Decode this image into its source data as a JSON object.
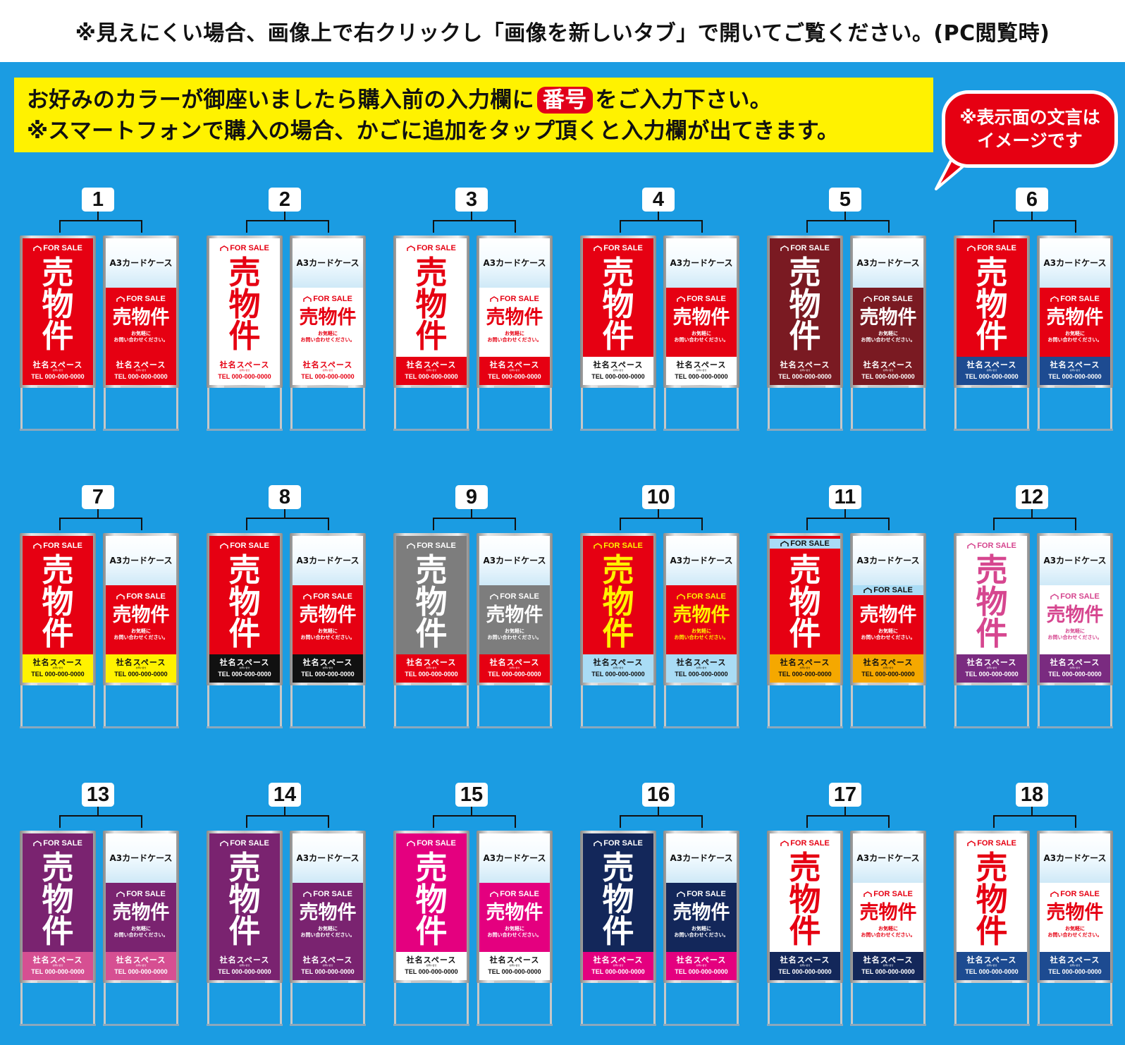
{
  "notice": {
    "text": "※見えにくい場合、画像上で右クリックし「画像を新しいタブ」で開いてご覧ください。(PC閲覧時)"
  },
  "instructions": {
    "line1_before": "お好みのカラーが御座いましたら購入前の入力欄に",
    "line1_highlight": "番号",
    "line1_after": "をご入力下さい。",
    "line2": "※スマートフォンで購入の場合、かごに追加をタップ頂くと入力欄が出てきます。"
  },
  "bubble": {
    "line1": "※表示面の文言は",
    "line2": "イメージです"
  },
  "sign_text": {
    "for_sale": "FOR SALE",
    "main_chars": [
      "売",
      "物",
      "件"
    ],
    "main_horizontal": "売物件",
    "case_label": "A3カードケース",
    "note1": "お気軽に",
    "note2": "お問い合わせください。",
    "company": "社名スペース",
    "contact_small": "お問い合せ",
    "tel": "TEL 000-000-0000"
  },
  "products": [
    {
      "number": "1",
      "top": "#e60012",
      "text": "#ffffff",
      "bottom": "#e60012",
      "bottom_text": "#ffffff",
      "tag_style": "plain"
    },
    {
      "number": "2",
      "top": "#ffffff",
      "text": "#e60012",
      "bottom": "#ffffff",
      "bottom_text": "#e60012",
      "tag_style": "plain"
    },
    {
      "number": "3",
      "top": "#ffffff",
      "text": "#e60012",
      "bottom": "#e60012",
      "bottom_text": "#ffffff",
      "tag_style": "plain"
    },
    {
      "number": "4",
      "top": "#e60012",
      "text": "#ffffff",
      "bottom": "#ffffff",
      "bottom_text": "#111111",
      "tag_style": "plain"
    },
    {
      "number": "5",
      "top": "#7a1a22",
      "text": "#ffffff",
      "bottom": "#7a1a22",
      "bottom_text": "#ffffff",
      "tag_style": "plain"
    },
    {
      "number": "6",
      "top": "#e60012",
      "text": "#ffffff",
      "bottom": "#1d4b91",
      "bottom_text": "#ffffff",
      "tag_style": "plain"
    },
    {
      "number": "7",
      "top": "#e60012",
      "text": "#ffffff",
      "bottom": "#fff200",
      "bottom_text": "#111111",
      "tag_style": "plain"
    },
    {
      "number": "8",
      "top": "#e60012",
      "text": "#ffffff",
      "bottom": "#111111",
      "bottom_text": "#ffffff",
      "tag_style": "plain"
    },
    {
      "number": "9",
      "top": "#7d7d7d",
      "text": "#ffffff",
      "bottom": "#e60012",
      "bottom_text": "#ffffff",
      "tag_style": "plain"
    },
    {
      "number": "10",
      "top": "#e60012",
      "text": "#fff200",
      "bottom": "#a9dcf5",
      "bottom_text": "#111111",
      "tag_style": "plain"
    },
    {
      "number": "11",
      "top": "#e60012",
      "text": "#ffffff",
      "bottom": "#f5a800",
      "bottom_text": "#111111",
      "tag_style": "band"
    },
    {
      "number": "12",
      "top": "#ffffff",
      "text": "#d6468f",
      "bottom": "#7a2b80",
      "bottom_text": "#ffffff",
      "tag_style": "plain"
    },
    {
      "number": "13",
      "top": "#7a2370",
      "text": "#ffffff",
      "bottom": "#d64f92",
      "bottom_text": "#ffffff",
      "tag_style": "plain"
    },
    {
      "number": "14",
      "top": "#7a2370",
      "text": "#ffffff",
      "bottom": "#7a2370",
      "bottom_text": "#ffffff",
      "tag_style": "plain"
    },
    {
      "number": "15",
      "top": "#e4007f",
      "text": "#ffffff",
      "bottom": "#ffffff",
      "bottom_text": "#111111",
      "tag_style": "plain"
    },
    {
      "number": "16",
      "top": "#13275a",
      "text": "#ffffff",
      "bottom": "#e4007f",
      "bottom_text": "#ffffff",
      "tag_style": "plain"
    },
    {
      "number": "17",
      "top": "#ffffff",
      "text": "#e60012",
      "bottom": "#13275a",
      "bottom_text": "#ffffff",
      "tag_style": "plain"
    },
    {
      "number": "18",
      "top": "#ffffff",
      "text": "#e60012",
      "bottom": "#1d4b91",
      "bottom_text": "#ffffff",
      "tag_style": "plain"
    }
  ]
}
